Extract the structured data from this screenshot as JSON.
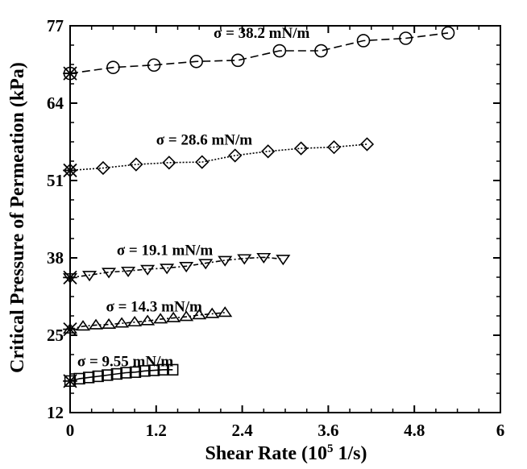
{
  "chart_data": {
    "type": "scatter",
    "xlabel": "Shear Rate (10",
    "xlabel_sup": "5",
    "xlabel_tail": " 1/s)",
    "ylabel": "Critical Pressure of Permeation (kPa)",
    "xlim": [
      0,
      6
    ],
    "ylim": [
      12,
      77
    ],
    "xticks": [
      0,
      1.2,
      2.4,
      3.6,
      4.8,
      6
    ],
    "xtick_labels": [
      "0",
      "1.2",
      "2.4",
      "3.6",
      "4.8",
      "6"
    ],
    "yticks": [
      12,
      25,
      38,
      51,
      64,
      77
    ],
    "ytick_labels": [
      "12",
      "25",
      "38",
      "51",
      "64",
      "77"
    ],
    "series": [
      {
        "name": "σ = 38.2 mN/m",
        "marker": "circle",
        "line": "dashed",
        "x": [
          0.0,
          0.6,
          1.17,
          1.76,
          2.34,
          2.92,
          3.5,
          4.09,
          4.68,
          5.27
        ],
        "y": [
          69.0,
          70.0,
          70.4,
          71.0,
          71.2,
          72.8,
          72.8,
          74.5,
          74.9,
          75.8
        ],
        "star": [
          0.0,
          69.0
        ],
        "label_x": 2.0,
        "label_y": 75.0
      },
      {
        "name": "σ = 28.6 mN/m",
        "marker": "diamond",
        "line": "dotted",
        "x": [
          0.0,
          0.46,
          0.92,
          1.38,
          1.84,
          2.3,
          2.76,
          3.22,
          3.68,
          4.14
        ],
        "y": [
          52.7,
          53.1,
          53.7,
          54.0,
          54.1,
          55.2,
          55.9,
          56.4,
          56.6,
          57.1
        ],
        "star": [
          0.0,
          52.7
        ],
        "label_x": 1.2,
        "label_y": 57.0
      },
      {
        "name": "σ = 19.1 mN/m",
        "marker": "triangle-down",
        "line": "dash-dot",
        "x": [
          0.0,
          0.27,
          0.54,
          0.81,
          1.08,
          1.35,
          1.62,
          1.89,
          2.16,
          2.43,
          2.7,
          2.97
        ],
        "y": [
          34.7,
          35.1,
          35.6,
          35.8,
          36.1,
          36.3,
          36.6,
          37.1,
          37.6,
          37.9,
          38.1,
          37.8
        ],
        "star": [
          0.0,
          34.7
        ],
        "label_x": 0.65,
        "label_y": 38.5
      },
      {
        "name": "σ = 14.3 mN/m",
        "marker": "triangle-up",
        "line": "dash-dot",
        "x": [
          0.0,
          0.18,
          0.36,
          0.54,
          0.72,
          0.9,
          1.08,
          1.26,
          1.44,
          1.62,
          1.8,
          1.98,
          2.16
        ],
        "y": [
          26.0,
          26.5,
          26.7,
          26.8,
          27.0,
          27.2,
          27.4,
          27.7,
          27.9,
          28.1,
          28.4,
          28.6,
          28.8
        ],
        "star": [
          0.0,
          26.0
        ],
        "label_x": 0.5,
        "label_y": 29.0
      },
      {
        "name": "σ = 9.55 mN/m",
        "marker": "square",
        "line": "solid",
        "x": [
          0.0,
          0.13,
          0.26,
          0.39,
          0.52,
          0.65,
          0.78,
          0.91,
          1.04,
          1.17,
          1.3,
          1.43
        ],
        "y": [
          17.3,
          17.7,
          17.9,
          18.1,
          18.3,
          18.5,
          18.7,
          18.8,
          19.0,
          19.1,
          19.2,
          19.2
        ],
        "star": [
          0.0,
          17.3
        ],
        "label_x": 0.1,
        "label_y": 19.8
      }
    ]
  }
}
